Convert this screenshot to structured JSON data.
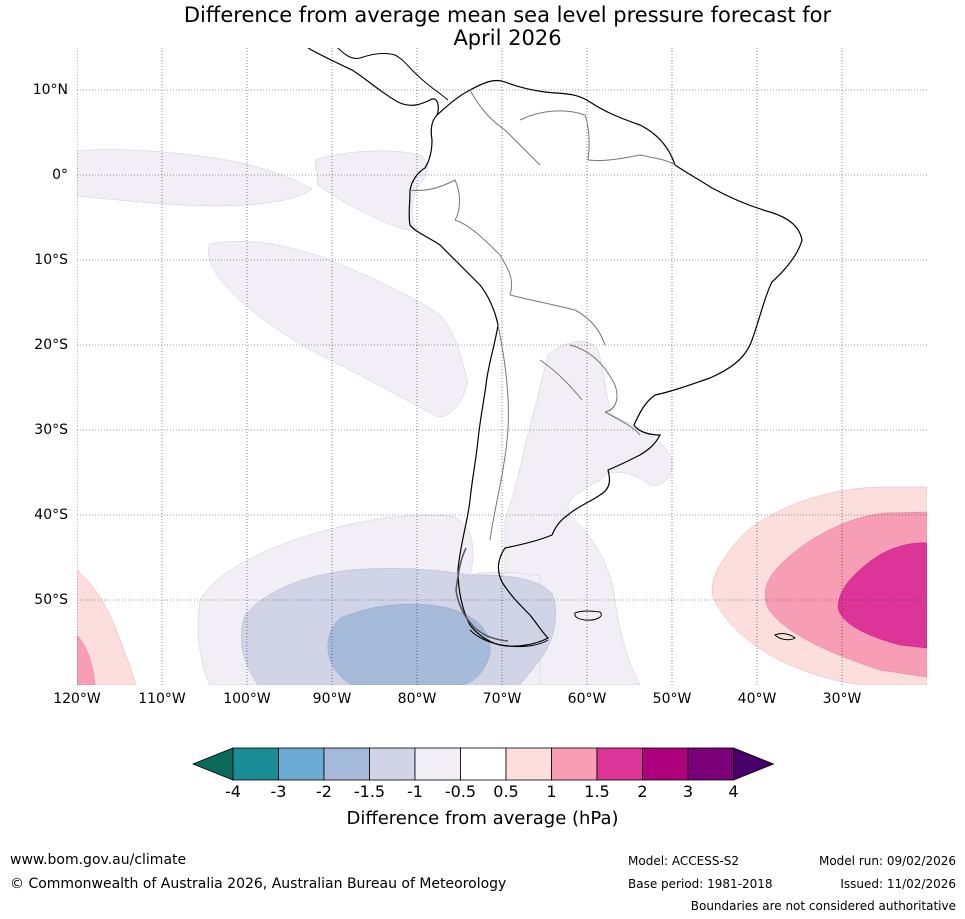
{
  "title": {
    "line1": "Difference from average mean sea level pressure forecast for",
    "line2": "April 2026"
  },
  "map": {
    "lat_labels": [
      "10°N",
      "0°",
      "10°S",
      "20°S",
      "30°S",
      "40°S",
      "50°S"
    ],
    "lon_labels": [
      "120°W",
      "110°W",
      "100°W",
      "90°W",
      "80°W",
      "70°W",
      "60°W",
      "50°W",
      "40°W",
      "30°W"
    ],
    "region": "South America and adjacent oceans",
    "bounds": {
      "lon_min": -120,
      "lon_max": -20,
      "lat_min": -60,
      "lat_max": 15
    }
  },
  "colorbar": {
    "ticks": [
      "-4",
      "-3",
      "-2",
      "-1.5",
      "-1",
      "-0.5",
      "0.5",
      "1",
      "1.5",
      "2",
      "3",
      "4"
    ],
    "colors": [
      "#1a8c96",
      "#6aaad3",
      "#a6bad9",
      "#d1d3e6",
      "#f1eef5",
      "#ffffff",
      "#fcdedd",
      "#f79db5",
      "#dd3497",
      "#ae017e",
      "#7a0177"
    ],
    "under_color": "#0a6b5d",
    "over_color": "#49006a",
    "label": "Difference from average (hPa)"
  },
  "footer": {
    "url": "www.bom.gov.au/climate",
    "copyright": "© Commonwealth of Australia 2026, Australian Bureau of Meteorology",
    "model": "Model: ACCESS-S2",
    "base_period": "Base period: 1981-2018",
    "model_run": "Model run: 09/02/2026",
    "issued": "Issued: 11/02/2026",
    "disclaimer": "Boundaries are not considered authoritative"
  }
}
